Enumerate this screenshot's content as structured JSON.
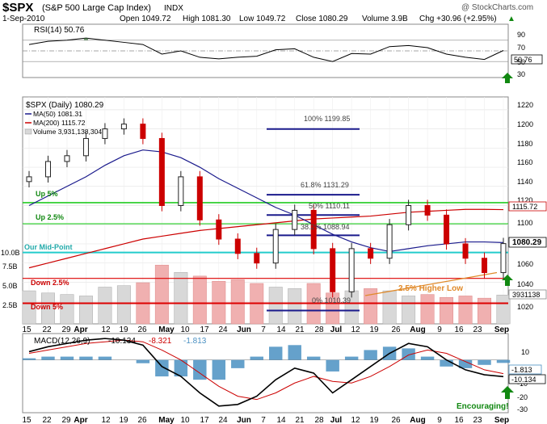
{
  "header": {
    "symbol": "$SPX",
    "name": "(S&P 500 Large Cap Index)",
    "exchange": "INDX",
    "date": "1-Sep-2010",
    "open": "Open 1049.72",
    "high": "High 1081.30",
    "low": "Low 1049.72",
    "close": "Close 1080.29",
    "volume": "Volume 3.9B",
    "change": "Chg +30.96 (+2.95%)",
    "up_arrow": "▲",
    "watermark": "@ StockCharts.com"
  },
  "colors": {
    "price_up": "#222222",
    "price_down": "#cc0000",
    "ma50": "#1a1a8c",
    "ma200": "#cc0000",
    "volume_up": "#d8d8d8",
    "volume_down": "#f0b0b0",
    "fib": "#1a1a8c",
    "support_green": "#22cc22",
    "midpoint": "#22cccc",
    "support_red": "#dd0000",
    "trendline": "#e08a2a",
    "macd_hist": "#4a90c2",
    "signal_arrow": "#118811"
  },
  "rsi_panel": {
    "label": "RSI(14) 50.76",
    "value_tag": "50.76",
    "ticks": [
      "90",
      "70",
      "50",
      "30"
    ]
  },
  "price_panel": {
    "legend_title": "$SPX (Daily) 1080.29",
    "legend_ma50": "MA(50) 1081.31",
    "legend_ma200": "MA(200) 1115.72",
    "legend_volume": "Volume 3,931,138,304",
    "price_tag": "1080.29",
    "ma200_tag": "1115.72",
    "volume_tag": "3931138",
    "y_ticks": [
      "1220",
      "1200",
      "1180",
      "1160",
      "1140",
      "1120",
      "1100",
      "1080",
      "1060",
      "1040",
      "1020"
    ],
    "volume_ticks": [
      "10.0B",
      "7.5B",
      "5.0B",
      "2.5B"
    ]
  },
  "annotations": {
    "up5": "Up 5%",
    "up25": "Up 2.5%",
    "midpoint": "Our Mid-Point",
    "down25": "Down 2.5%",
    "down5": "Down 5%",
    "higher_low": "2.5% Higher Low",
    "encouraging": "Encouraging!",
    "fib_100": "100% 1199.85",
    "fib_618": "61.8% 1131.29",
    "fib_50": "50% 1110.11",
    "fib_382": "38.2% 1088.94",
    "fib_0": "0% 1010.39"
  },
  "macd_panel": {
    "label": "MACD(12,26,9)",
    "macd_value": "-10.134",
    "signal_value": "-8.321",
    "hist_value": "-1.813",
    "hist_tag": "-1.813",
    "macd_tag": "-10.134",
    "ticks": [
      "10",
      "0",
      "-10",
      "-20",
      "-30"
    ]
  },
  "x_axis": [
    "15",
    "22",
    "29",
    "Apr",
    "12",
    "19",
    "26",
    "May",
    "10",
    "17",
    "24",
    "Jun",
    "7",
    "14",
    "21",
    "28",
    "Jul",
    "12",
    "19",
    "26",
    "Aug",
    "9",
    "16",
    "23",
    "Sep"
  ],
  "chart_data": [
    {
      "type": "line",
      "title": "RSI(14) 50.76",
      "x": [
        "2010-03-15",
        "2010-03-22",
        "2010-03-29",
        "2010-04-05",
        "2010-04-12",
        "2010-04-19",
        "2010-04-26",
        "2010-05-03",
        "2010-05-10",
        "2010-05-17",
        "2010-05-24",
        "2010-05-31",
        "2010-06-07",
        "2010-06-14",
        "2010-06-21",
        "2010-06-28",
        "2010-07-05",
        "2010-07-12",
        "2010-07-19",
        "2010-07-26",
        "2010-08-02",
        "2010-08-09",
        "2010-08-16",
        "2010-08-23",
        "2010-08-30",
        "2010-09-01"
      ],
      "series": [
        {
          "name": "RSI(14)",
          "values": [
            62,
            68,
            70,
            74,
            70,
            66,
            62,
            44,
            50,
            38,
            35,
            38,
            40,
            52,
            54,
            38,
            30,
            45,
            44,
            58,
            60,
            56,
            44,
            38,
            34,
            50.76
          ]
        }
      ],
      "ylim": [
        0,
        100
      ],
      "reference_lines": [
        70,
        50,
        30
      ]
    },
    {
      "type": "line",
      "title": "$SPX (Daily) 1080.29",
      "x": [
        "2010-03-15",
        "2010-03-22",
        "2010-03-29",
        "2010-04-05",
        "2010-04-12",
        "2010-04-19",
        "2010-04-26",
        "2010-05-03",
        "2010-05-10",
        "2010-05-17",
        "2010-05-24",
        "2010-05-31",
        "2010-06-07",
        "2010-06-14",
        "2010-06-21",
        "2010-06-28",
        "2010-07-05",
        "2010-07-12",
        "2010-07-19",
        "2010-07-26",
        "2010-08-02",
        "2010-08-09",
        "2010-08-16",
        "2010-08-23",
        "2010-08-30",
        "2010-09-01"
      ],
      "series": [
        {
          "name": "$SPX",
          "values": [
            1150,
            1166,
            1172,
            1190,
            1200,
            1205,
            1190,
            1120,
            1150,
            1105,
            1085,
            1070,
            1060,
            1095,
            1115,
            1075,
            1030,
            1075,
            1065,
            1100,
            1120,
            1110,
            1080,
            1065,
            1050,
            1080.29
          ]
        },
        {
          "name": "MA(50)",
          "values": [
            1120,
            1130,
            1140,
            1150,
            1162,
            1172,
            1178,
            1176,
            1170,
            1160,
            1148,
            1138,
            1128,
            1118,
            1110,
            1100,
            1090,
            1082,
            1076,
            1072,
            1075,
            1078,
            1080,
            1082,
            1082,
            1081.31
          ]
        },
        {
          "name": "MA(200)",
          "values": [
            1055,
            1060,
            1065,
            1070,
            1075,
            1080,
            1085,
            1088,
            1091,
            1094,
            1096,
            1098,
            1100,
            1102,
            1104,
            1106,
            1107,
            1108,
            1109,
            1111,
            1113,
            1114,
            1115,
            1116,
            1116,
            1115.72
          ]
        }
      ],
      "horizontal_levels": [
        {
          "label": "Up 5%",
          "value": 1123
        },
        {
          "label": "Up 2.5%",
          "value": 1101
        },
        {
          "label": "Our Mid-Point",
          "value": 1071
        },
        {
          "label": "Down 2.5%",
          "value": 1044
        },
        {
          "label": "Down 5%",
          "value": 1018
        }
      ],
      "fib_levels": [
        {
          "label": "100%",
          "value": 1199.85
        },
        {
          "label": "61.8%",
          "value": 1131.29
        },
        {
          "label": "50%",
          "value": 1110.11
        },
        {
          "label": "38.2%",
          "value": 1088.94
        },
        {
          "label": "0%",
          "value": 1010.39
        }
      ],
      "ylim": [
        1010,
        1230
      ]
    },
    {
      "type": "bar",
      "title": "Volume 3,931,138,304",
      "categories": [
        "2010-03-15",
        "2010-03-22",
        "2010-03-29",
        "2010-04-05",
        "2010-04-12",
        "2010-04-19",
        "2010-04-26",
        "2010-05-03",
        "2010-05-10",
        "2010-05-17",
        "2010-05-24",
        "2010-05-31",
        "2010-06-07",
        "2010-06-14",
        "2010-06-21",
        "2010-06-28",
        "2010-07-05",
        "2010-07-12",
        "2010-07-19",
        "2010-07-26",
        "2010-08-02",
        "2010-08-09",
        "2010-08-16",
        "2010-08-23",
        "2010-08-30",
        "2010-09-01"
      ],
      "values": [
        4.5,
        4.2,
        4.0,
        3.8,
        5.0,
        5.2,
        5.6,
        8.0,
        7.0,
        6.5,
        5.8,
        6.0,
        5.5,
        5.0,
        4.8,
        5.5,
        4.2,
        4.5,
        4.8,
        4.5,
        3.8,
        4.0,
        3.6,
        3.8,
        3.5,
        3.93
      ],
      "ylim": [
        0,
        10
      ]
    },
    {
      "type": "line",
      "title": "MACD(12,26,9) -10.134, -8.321, -1.813",
      "x": [
        "2010-03-15",
        "2010-03-22",
        "2010-03-29",
        "2010-04-05",
        "2010-04-12",
        "2010-04-19",
        "2010-04-26",
        "2010-05-03",
        "2010-05-10",
        "2010-05-17",
        "2010-05-24",
        "2010-05-31",
        "2010-06-07",
        "2010-06-14",
        "2010-06-21",
        "2010-06-28",
        "2010-07-05",
        "2010-07-12",
        "2010-07-19",
        "2010-07-26",
        "2010-08-02",
        "2010-08-09",
        "2010-08-16",
        "2010-08-23",
        "2010-08-30",
        "2010-09-01"
      ],
      "series": [
        {
          "name": "MACD",
          "values": [
            5,
            8,
            10,
            12,
            13,
            12,
            9,
            -4,
            -10,
            -20,
            -28,
            -27,
            -22,
            -12,
            -5,
            -8,
            -20,
            -12,
            -4,
            4,
            10,
            8,
            0,
            -6,
            -9,
            -10.134
          ]
        },
        {
          "name": "Signal",
          "values": [
            4,
            6,
            8,
            10,
            11,
            12,
            11,
            6,
            0,
            -8,
            -16,
            -22,
            -24,
            -20,
            -14,
            -10,
            -13,
            -14,
            -10,
            -4,
            3,
            6,
            4,
            -1,
            -6,
            -8.321
          ]
        },
        {
          "name": "Histogram",
          "values": [
            1,
            2,
            2,
            2,
            2,
            0,
            -2,
            -10,
            -10,
            -12,
            -12,
            -5,
            2,
            8,
            9,
            2,
            -7,
            2,
            6,
            8,
            7,
            2,
            -4,
            -5,
            -3,
            -1.813
          ]
        }
      ],
      "ylim": [
        -32,
        16
      ]
    }
  ]
}
